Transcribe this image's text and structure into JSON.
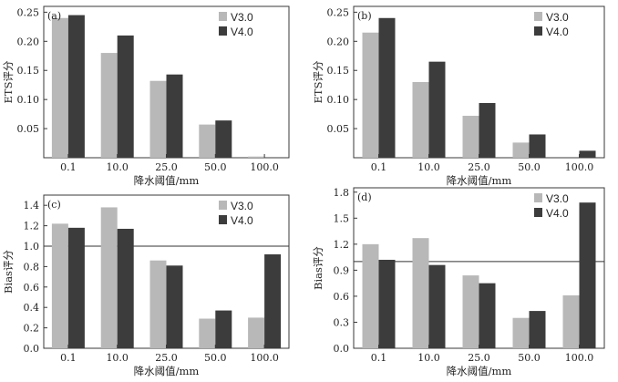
{
  "chart_data": [
    {
      "type": "bar",
      "panel": "(a)",
      "categories": [
        "0.1",
        "10.0",
        "25.0",
        "50.0",
        "100.0"
      ],
      "series": [
        {
          "name": "V3.0",
          "values": [
            0.24,
            0.18,
            0.132,
            0.057,
            0.002
          ]
        },
        {
          "name": "V4.0",
          "values": [
            0.245,
            0.21,
            0.143,
            0.064,
            0.0
          ]
        }
      ],
      "yticks": [
        0.05,
        0.1,
        0.15,
        0.2,
        0.25
      ],
      "ytick_labels": [
        "0.05",
        "0.10",
        "0.15",
        "0.20",
        "0.25"
      ],
      "ylim": [
        0,
        0.26
      ],
      "xlabel": "降水阈值/mm",
      "ylabel": "ETS评分",
      "legend": "top-right"
    },
    {
      "type": "bar",
      "panel": "(b)",
      "categories": [
        "0.1",
        "10.0",
        "25.0",
        "50.0",
        "100.0"
      ],
      "series": [
        {
          "name": "V3.0",
          "values": [
            0.215,
            0.13,
            0.072,
            0.026,
            0.0
          ]
        },
        {
          "name": "V4.0",
          "values": [
            0.24,
            0.165,
            0.094,
            0.04,
            0.012
          ]
        }
      ],
      "yticks": [
        0.05,
        0.1,
        0.15,
        0.2,
        0.25
      ],
      "ytick_labels": [
        "0.05",
        "0.10",
        "0.15",
        "0.20",
        "0.25"
      ],
      "ylim": [
        0,
        0.26
      ],
      "xlabel": "降水阈值/mm",
      "ylabel": "ETS评分",
      "legend": "top-right"
    },
    {
      "type": "bar",
      "panel": "(c)",
      "categories": [
        "0.1",
        "10.0",
        "25.0",
        "50.0",
        "100.0"
      ],
      "series": [
        {
          "name": "V3.0",
          "values": [
            1.22,
            1.38,
            0.86,
            0.29,
            0.3
          ]
        },
        {
          "name": "V4.0",
          "values": [
            1.18,
            1.17,
            0.81,
            0.37,
            0.92
          ]
        }
      ],
      "yticks": [
        0.0,
        0.2,
        0.4,
        0.6,
        0.8,
        1.0,
        1.2,
        1.4
      ],
      "ytick_labels": [
        "0.0",
        "0.2",
        "0.4",
        "0.6",
        "0.8",
        "1.0",
        "1.2",
        "1.4"
      ],
      "ylim": [
        0,
        1.5
      ],
      "reference_line": 1.0,
      "xlabel": "降水阈值/mm",
      "ylabel": "Bias评分",
      "legend": "top-right"
    },
    {
      "type": "bar",
      "panel": "(d)",
      "categories": [
        "0.1",
        "10.0",
        "25.0",
        "50.0",
        "100.0"
      ],
      "series": [
        {
          "name": "V3.0",
          "values": [
            1.2,
            1.27,
            0.84,
            0.35,
            0.61
          ]
        },
        {
          "name": "V4.0",
          "values": [
            1.02,
            0.96,
            0.75,
            0.43,
            1.68
          ]
        }
      ],
      "yticks": [
        0.0,
        0.3,
        0.6,
        0.9,
        1.2,
        1.5,
        1.8
      ],
      "ytick_labels": [
        "0.0",
        "0.3",
        "0.6",
        "0.9",
        "1.2",
        "1.5",
        "1.8"
      ],
      "ylim": [
        0,
        1.85
      ],
      "reference_line": 1.0,
      "xlabel": "降水阈值/mm",
      "ylabel": "Bias评分",
      "legend": "top-right"
    }
  ],
  "colors": {
    "V3.0": "#b8b8b8",
    "V4.0": "#3c3c3c"
  }
}
